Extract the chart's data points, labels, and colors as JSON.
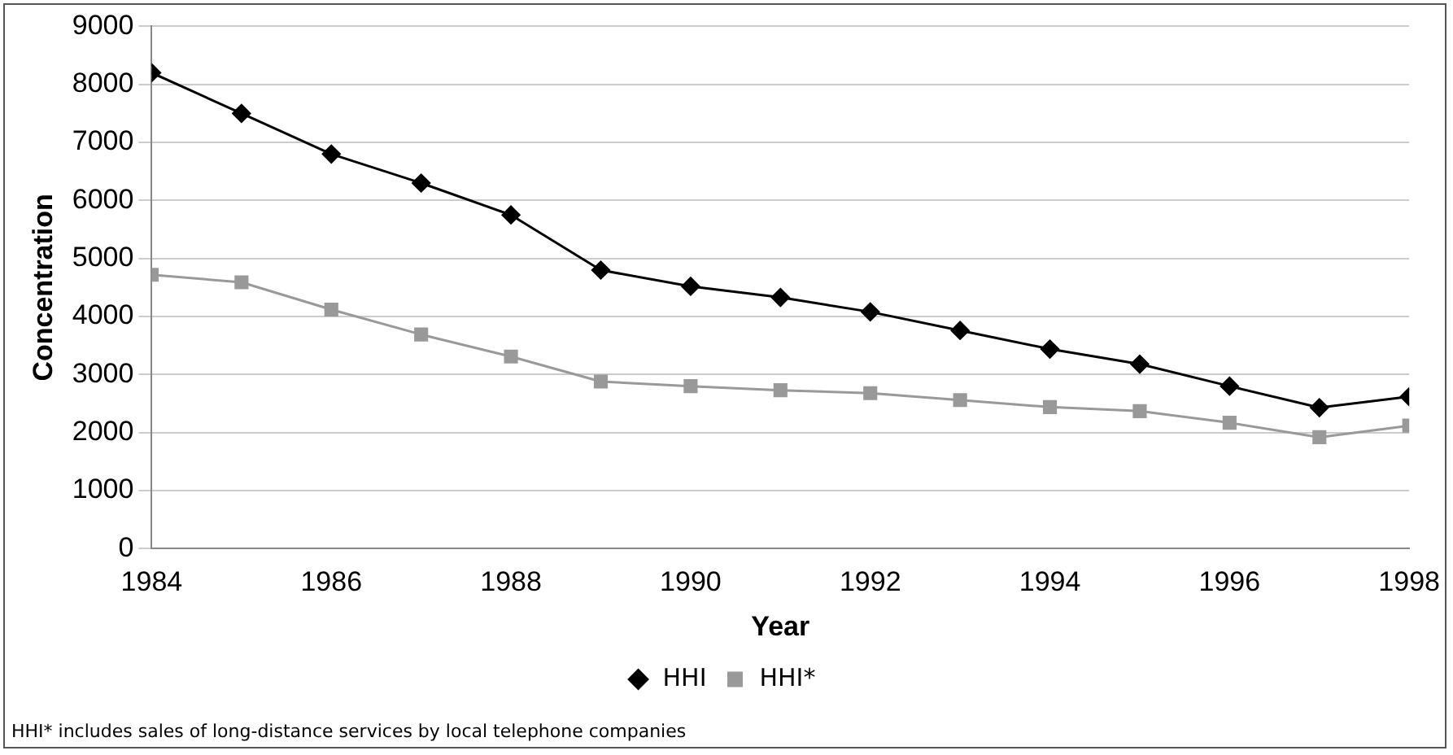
{
  "chart_data": {
    "type": "line",
    "xlabel": "Year",
    "ylabel": "Concentration",
    "x": [
      1984,
      1985,
      1986,
      1987,
      1988,
      1989,
      1990,
      1991,
      1992,
      1993,
      1994,
      1995,
      1996,
      1997,
      1998
    ],
    "series": [
      {
        "name": "HHI",
        "color": "#000000",
        "marker": "diamond",
        "values": [
          8200,
          7500,
          6800,
          6300,
          5750,
          4800,
          4520,
          4330,
          4080,
          3760,
          3440,
          3180,
          2800,
          2430,
          2620
        ]
      },
      {
        "name": "HHI*",
        "color": "#999999",
        "marker": "square",
        "values": [
          4720,
          4590,
          4120,
          3690,
          3310,
          2880,
          2800,
          2730,
          2680,
          2560,
          2440,
          2370,
          2170,
          1920,
          2120
        ]
      }
    ],
    "xlim": [
      1984,
      1998
    ],
    "xticks": [
      1984,
      1986,
      1988,
      1990,
      1992,
      1994,
      1996,
      1998
    ],
    "ylim": [
      0,
      9000
    ],
    "yticks": [
      0,
      1000,
      2000,
      3000,
      4000,
      5000,
      6000,
      7000,
      8000,
      9000
    ],
    "grid": "y",
    "legend": "bottom",
    "line_style": "solid",
    "annotations": [
      "HHI* includes sales of long-distance services by local telephone companies"
    ]
  }
}
